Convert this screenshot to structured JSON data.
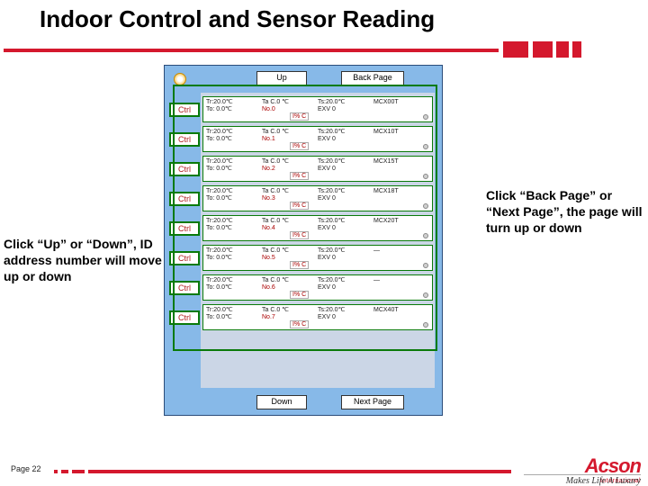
{
  "title": "Indoor Control and Sensor Reading",
  "page_label": "Page 22",
  "annotations": {
    "left": "Click “Up” or “Down”, ID address number will move up or down",
    "right": "Click “Back Page” or “Next Page”, the page will turn up or down"
  },
  "buttons": {
    "up": "Up",
    "down": "Down",
    "back": "Back Page",
    "next": "Next Page"
  },
  "ctrl_label": "Ctrl",
  "rows": [
    {
      "no": 0,
      "mcx": "MCX00T"
    },
    {
      "no": 1,
      "mcx": "MCX10T"
    },
    {
      "no": 2,
      "mcx": "MCX15T"
    },
    {
      "no": 3,
      "mcx": "MCX18T"
    },
    {
      "no": 4,
      "mcx": "MCX20T"
    },
    {
      "no": 5,
      "mcx": "—"
    },
    {
      "no": 6,
      "mcx": "—"
    },
    {
      "no": 7,
      "mcx": "MCX40T"
    }
  ],
  "row_readings": {
    "tr": "Tr:20.0℃",
    "to": "To: 0.0℃",
    "ta_c0": "Ta  C.0 ℃",
    "ts": "Ts:20.0℃",
    "exv": "EXV  0",
    "ic": "I% C"
  },
  "logo": {
    "brand": "Acson",
    "intl": "International",
    "tagline": "Makes Life A Luxury"
  },
  "colors": {
    "accent": "#d4182d",
    "green": "#0a7a0a",
    "panel_bg": "#87b9e8"
  }
}
